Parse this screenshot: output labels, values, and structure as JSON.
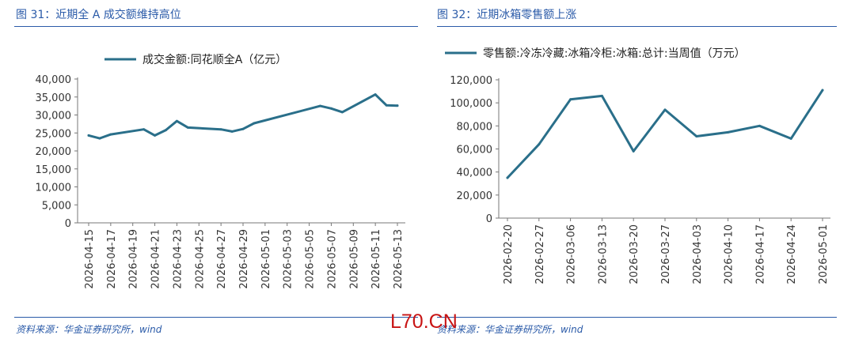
{
  "left": {
    "title": "图 31：近期全 A 成交额维持高位",
    "source": "资料来源：华金证券研究所，wind"
  },
  "right": {
    "title": "图 32：近期冰箱零售额上涨",
    "source": "资料来源：华金证券研究所，wind"
  },
  "watermark": "L70.CN",
  "colors": {
    "line": "#2a6f8a",
    "accent": "#2a5aa8",
    "watermark": "#c81414"
  },
  "chart_data": [
    {
      "type": "line",
      "legend": "成交金额:同花顺全A（亿元）",
      "legend_position": "top",
      "ylim": [
        0,
        40000
      ],
      "y_ticks": [
        "40,000",
        "35,000",
        "30,000",
        "25,000",
        "20,000",
        "15,000",
        "10,000",
        "5,000",
        "0"
      ],
      "x_tick_labels": [
        "2026-04-15",
        "2026-04-17",
        "2026-04-19",
        "2026-04-21",
        "2026-04-23",
        "2026-04-25",
        "2026-04-27",
        "2026-04-29",
        "2026-05-01",
        "2026-05-03",
        "2026-05-05",
        "2026-05-07",
        "2026-05-09",
        "2026-05-11",
        "2026-05-13"
      ],
      "x": [
        "2026-04-15",
        "2026-04-16",
        "2026-04-17",
        "2026-04-20",
        "2026-04-21",
        "2026-04-22",
        "2026-04-23",
        "2026-04-24",
        "2026-04-27",
        "2026-04-28",
        "2026-04-29",
        "2026-04-30",
        "2026-05-06",
        "2026-05-07",
        "2026-05-08",
        "2026-05-11",
        "2026-05-12",
        "2026-05-13"
      ],
      "values": [
        24300,
        23500,
        24600,
        26000,
        24300,
        25800,
        28300,
        26500,
        26000,
        25400,
        26100,
        27700,
        32500,
        31800,
        30800,
        35700,
        32700,
        32600
      ],
      "grid": false
    },
    {
      "type": "line",
      "legend": "零售额:冷冻冷藏:冰箱冷柜:冰箱:总计:当周值（万元）",
      "legend_position": "top",
      "ylim": [
        0,
        120000
      ],
      "y_ticks": [
        "120,000",
        "100,000",
        "80,000",
        "60,000",
        "40,000",
        "20,000",
        "0"
      ],
      "x_tick_labels": [
        "2026-02-20",
        "2026-02-27",
        "2026-03-06",
        "2026-03-13",
        "2026-03-20",
        "2026-03-27",
        "2026-04-03",
        "2026-04-10",
        "2026-04-17",
        "2026-04-24",
        "2026-05-01"
      ],
      "x": [
        "2026-02-20",
        "2026-02-27",
        "2026-03-06",
        "2026-03-13",
        "2026-03-20",
        "2026-03-27",
        "2026-04-03",
        "2026-04-10",
        "2026-04-17",
        "2026-04-24",
        "2026-05-01"
      ],
      "values": [
        35000,
        64000,
        103000,
        106000,
        58000,
        94000,
        71000,
        74500,
        80000,
        69000,
        111000
      ],
      "grid": false
    }
  ]
}
